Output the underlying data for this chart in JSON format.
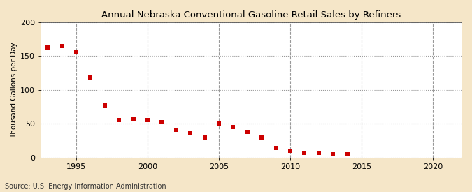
{
  "title": "Annual Nebraska Conventional Gasoline Retail Sales by Refiners",
  "ylabel": "Thousand Gallons per Day",
  "source": "Source: U.S. Energy Information Administration",
  "background_color": "#f5e6c8",
  "plot_background_color": "#ffffff",
  "marker_color": "#cc0000",
  "marker": "s",
  "marker_size": 16,
  "xlim": [
    1992.5,
    2022
  ],
  "ylim": [
    0,
    200
  ],
  "xticks": [
    1995,
    2000,
    2005,
    2010,
    2015,
    2020
  ],
  "yticks": [
    0,
    50,
    100,
    150,
    200
  ],
  "years": [
    1993,
    1994,
    1995,
    1996,
    1997,
    1998,
    1999,
    2000,
    2001,
    2002,
    2003,
    2004,
    2005,
    2006,
    2007,
    2008,
    2009,
    2010,
    2011,
    2012,
    2013,
    2014
  ],
  "values": [
    163,
    165,
    157,
    118,
    77,
    56,
    57,
    56,
    52,
    41,
    37,
    30,
    50,
    45,
    38,
    30,
    14,
    10,
    7,
    7,
    6,
    6
  ]
}
